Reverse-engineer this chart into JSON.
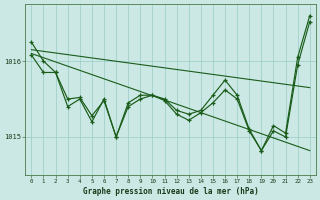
{
  "background_color": "#cce8e4",
  "grid_color": "#99ccc6",
  "line_color": "#1a5c1a",
  "xlabel": "Graphe pression niveau de la mer (hPa)",
  "ylim": [
    1014.5,
    1016.75
  ],
  "xlim": [
    -0.5,
    23.5
  ],
  "yticks": [
    1015,
    1016
  ],
  "xticks": [
    0,
    1,
    2,
    3,
    4,
    5,
    6,
    7,
    8,
    9,
    10,
    11,
    12,
    13,
    14,
    15,
    16,
    17,
    18,
    19,
    20,
    21,
    22,
    23
  ],
  "trend1_x": [
    0,
    23
  ],
  "trend1_y": [
    1016.15,
    1015.65
  ],
  "trend2_x": [
    0,
    23
  ],
  "trend2_y": [
    1016.1,
    1014.82
  ],
  "series1_x": [
    0,
    1,
    2,
    3,
    4,
    5,
    6,
    7,
    8,
    9,
    10,
    11,
    12,
    13,
    14,
    15,
    16,
    17,
    18,
    19,
    20,
    21,
    22,
    23
  ],
  "series1_y": [
    1016.25,
    1016.0,
    1015.85,
    1015.4,
    1015.5,
    1015.2,
    1015.5,
    1015.0,
    1015.45,
    1015.55,
    1015.55,
    1015.5,
    1015.35,
    1015.3,
    1015.35,
    1015.55,
    1015.75,
    1015.55,
    1015.1,
    1014.82,
    1015.15,
    1015.05,
    1016.05,
    1016.6
  ],
  "series2_x": [
    0,
    1,
    2,
    3,
    4,
    5,
    6,
    7,
    8,
    9,
    10,
    11,
    12,
    13,
    14,
    15,
    16,
    17,
    18,
    19,
    20,
    21,
    22,
    23
  ],
  "series2_y": [
    1016.08,
    1015.85,
    1015.85,
    1015.5,
    1015.52,
    1015.28,
    1015.48,
    1015.0,
    1015.4,
    1015.5,
    1015.55,
    1015.48,
    1015.3,
    1015.22,
    1015.32,
    1015.45,
    1015.62,
    1015.5,
    1015.08,
    1014.82,
    1015.08,
    1015.0,
    1015.95,
    1016.52
  ]
}
